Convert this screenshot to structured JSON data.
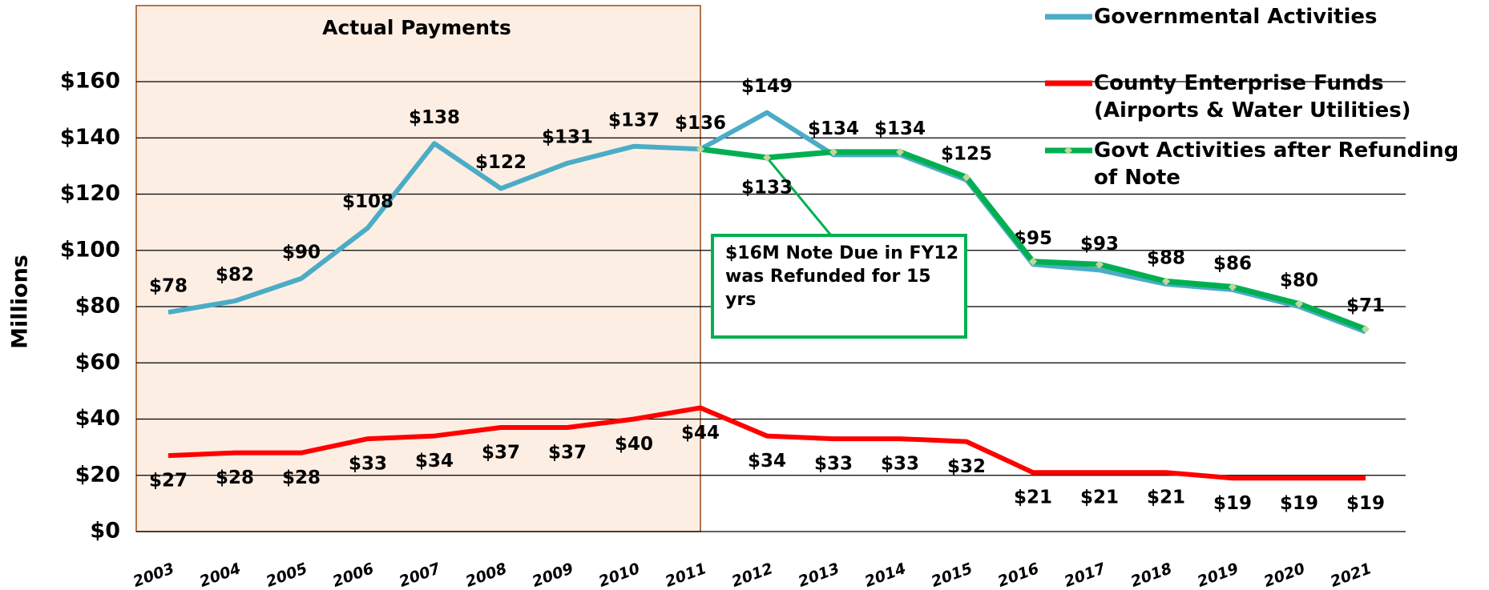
{
  "chart_data": {
    "type": "line",
    "y_label": "Millions",
    "shaded_region_label": "Actual Payments",
    "annotation": "$16M Note Due in FY12 was Refunded for 15 yrs",
    "categories": [
      "2003",
      "2004",
      "2005",
      "2006",
      "2007",
      "2008",
      "2009",
      "2010",
      "2011",
      "2012",
      "2013",
      "2014",
      "2015",
      "2016",
      "2017",
      "2018",
      "2019",
      "2020",
      "2021"
    ],
    "series": [
      {
        "name": "Governmental Activities",
        "color": "#4bacc6",
        "values": [
          78,
          82,
          90,
          108,
          138,
          122,
          131,
          137,
          136,
          149,
          134,
          134,
          125,
          95,
          93,
          88,
          86,
          80,
          71
        ],
        "value_labels": [
          "$78",
          "$82",
          "$90",
          "$108",
          "$138",
          "$122",
          "$131",
          "$137",
          "$136",
          "$149",
          "$134",
          "$134",
          "$125",
          "$95",
          "$93",
          "$88",
          "$86",
          "$80",
          "$71"
        ]
      },
      {
        "name": "County Enterprise Funds (Airports & Water Utilities)",
        "color": "#ff0000",
        "values": [
          27,
          28,
          28,
          33,
          34,
          37,
          37,
          40,
          44,
          34,
          33,
          33,
          32,
          21,
          21,
          21,
          19,
          19,
          19
        ],
        "value_labels": [
          "$27",
          "$28",
          "$28",
          "$33",
          "$34",
          "$37",
          "$37",
          "$40",
          "$44",
          "$34",
          "$33",
          "$33",
          "$32",
          "$21",
          "$21",
          "$21",
          "$19",
          "$19",
          "$19"
        ]
      },
      {
        "name": "Govt Activities after Refunding of Note",
        "color": "#00b050",
        "values": [
          null,
          null,
          null,
          null,
          null,
          null,
          null,
          null,
          136,
          133,
          135,
          135,
          126,
          96,
          95,
          89,
          87,
          81,
          72
        ],
        "value_labels": [
          null,
          null,
          null,
          null,
          null,
          null,
          null,
          null,
          null,
          "$133",
          null,
          null,
          null,
          null,
          null,
          null,
          null,
          null,
          null
        ]
      }
    ],
    "ylim": [
      0,
      160
    ],
    "yticks": [
      {
        "value": 0,
        "label": "$0"
      },
      {
        "value": 20,
        "label": "$20"
      },
      {
        "value": 40,
        "label": "$40"
      },
      {
        "value": 60,
        "label": "$60"
      },
      {
        "value": 80,
        "label": "$80"
      },
      {
        "value": 100,
        "label": "$100"
      },
      {
        "value": 120,
        "label": "$120"
      },
      {
        "value": 140,
        "label": "$140"
      },
      {
        "value": 160,
        "label": "$160"
      }
    ],
    "grid": true,
    "legend": "top-right"
  }
}
